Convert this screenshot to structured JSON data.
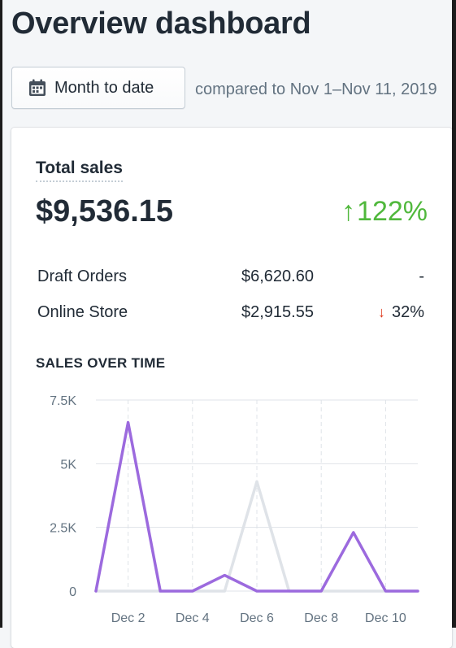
{
  "page": {
    "title": "Overview dashboard"
  },
  "toolbar": {
    "date_range_label": "Month to date",
    "compare_text": "compared to Nov 1–Nov 11, 2019"
  },
  "colors": {
    "accent_purple": "#9c6ade",
    "previous_gray": "#dfe3e8",
    "positive_green": "#50b83c",
    "negative_red": "#de3618"
  },
  "total_sales": {
    "label": "Total sales",
    "value": "$9,536.15",
    "change_arrow": "↑",
    "change": "122%",
    "channels": [
      {
        "name": "Draft Orders",
        "value": "$6,620.60",
        "change_arrow": "",
        "change": "-"
      },
      {
        "name": "Online Store",
        "value": "$2,915.55",
        "change_arrow": "↓",
        "change": "32%"
      }
    ]
  },
  "sales_over_time": {
    "label": "SALES OVER TIME"
  },
  "chart_data": {
    "type": "line",
    "title": "SALES OVER TIME",
    "xlabel": "",
    "ylabel": "",
    "x": [
      1,
      2,
      3,
      4,
      5,
      6,
      7,
      8,
      9,
      10,
      11
    ],
    "x_tick_values": [
      2,
      4,
      6,
      8,
      10
    ],
    "x_tick_labels": [
      "Dec 2",
      "Dec 4",
      "Dec 6",
      "Dec 8",
      "Dec 10"
    ],
    "y_tick_values": [
      0,
      2500,
      5000,
      7500
    ],
    "y_tick_labels": [
      "0",
      "2.5K",
      "5K",
      "7.5K"
    ],
    "xlim": [
      1,
      11
    ],
    "ylim": [
      0,
      7500
    ],
    "grid": true,
    "series": [
      {
        "role": "previous",
        "color": "#dfe3e8",
        "values": [
          0,
          0,
          0,
          0,
          0,
          4300,
          0,
          0,
          0,
          0,
          0
        ]
      },
      {
        "role": "current",
        "color": "#9c6ade",
        "values": [
          0,
          6620,
          0,
          0,
          620,
          0,
          0,
          0,
          2300,
          0,
          0
        ]
      }
    ]
  }
}
